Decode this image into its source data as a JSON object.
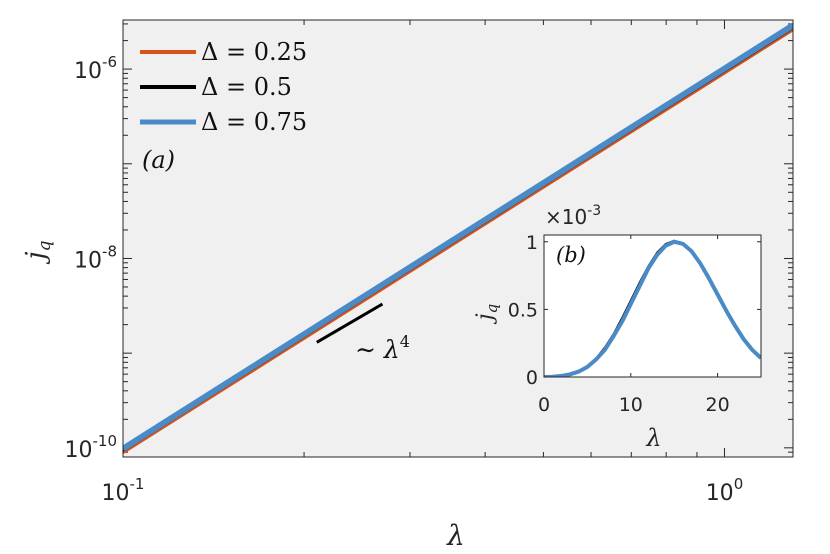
{
  "chart_data": [
    {
      "id": "main",
      "type": "line",
      "panel_label": "(a)",
      "xlabel": "λ",
      "ylabel": "j",
      "ylabel_sub": "q",
      "x_scale": "log",
      "y_scale": "log",
      "xlim": [
        0.1,
        1.3
      ],
      "ylim": [
        8e-11,
        3.3e-06
      ],
      "x_ticks": [
        {
          "value": 0.1,
          "base": "10",
          "exp": "-1"
        },
        {
          "value": 1,
          "base": "10",
          "exp": "0"
        }
      ],
      "y_ticks": [
        {
          "value": 1e-10,
          "base": "10",
          "exp": "-10"
        },
        {
          "value": 1e-08,
          "base": "10",
          "exp": "-8"
        },
        {
          "value": 1e-06,
          "base": "10",
          "exp": "-6"
        }
      ],
      "series": [
        {
          "name": "Δ = 0.25",
          "color": "#D95319",
          "x": [
            0.1,
            1.3
          ],
          "y": [
            8.9e-11,
            2.6e-06
          ]
        },
        {
          "name": "Δ = 0.5",
          "color": "#000000",
          "x": [
            0.1,
            1.3
          ],
          "y": [
            9.4e-11,
            2.75e-06
          ]
        },
        {
          "name": "Δ = 0.75",
          "color": "#4A8AC7",
          "x": [
            0.1,
            1.3
          ],
          "y": [
            9.8e-11,
            2.9e-06
          ]
        }
      ],
      "annotation": {
        "text": "∼ λ",
        "exp": "4",
        "x": [
          0.21,
          0.27
        ],
        "y": [
          1.3e-09,
          3.3e-09
        ]
      },
      "legend_placement": "top-left",
      "grid": false
    },
    {
      "id": "inset",
      "type": "line",
      "panel_label": "(b)",
      "xlabel": "λ",
      "ylabel": "j",
      "ylabel_sub": "q",
      "multiplier": "×10",
      "multiplier_exp": "-3",
      "xlim": [
        0,
        25
      ],
      "ylim": [
        0,
        1.05
      ],
      "x_ticks": [
        "0",
        "10",
        "20"
      ],
      "x_tick_values": [
        0,
        10,
        20
      ],
      "y_ticks": [
        "0",
        "0.5",
        "1"
      ],
      "y_tick_values": [
        0,
        0.5,
        1
      ],
      "series": [
        {
          "name": "Δ = 0.5",
          "color": "#000000",
          "x": [
            0,
            1,
            2,
            3,
            4,
            5,
            6,
            7,
            8,
            9,
            10,
            11,
            12,
            13,
            14,
            15,
            16,
            17,
            18,
            19,
            20,
            21,
            22,
            23,
            24,
            25
          ],
          "y": [
            0,
            0.002,
            0.008,
            0.02,
            0.04,
            0.08,
            0.14,
            0.22,
            0.32,
            0.44,
            0.57,
            0.7,
            0.82,
            0.92,
            0.985,
            1.01,
            0.99,
            0.93,
            0.84,
            0.73,
            0.61,
            0.49,
            0.38,
            0.28,
            0.2,
            0.14
          ]
        },
        {
          "name": "Δ = 0.75",
          "color": "#4A8AC7",
          "x": [
            0,
            1,
            2,
            3,
            4,
            5,
            6,
            7,
            8,
            9,
            10,
            11,
            12,
            13,
            14,
            15,
            16,
            17,
            18,
            19,
            20,
            21,
            22,
            23,
            24,
            25
          ],
          "y": [
            0,
            0.002,
            0.008,
            0.02,
            0.04,
            0.075,
            0.13,
            0.2,
            0.3,
            0.41,
            0.54,
            0.67,
            0.8,
            0.9,
            0.97,
            1.0,
            0.985,
            0.93,
            0.84,
            0.73,
            0.61,
            0.49,
            0.38,
            0.28,
            0.2,
            0.14
          ]
        }
      ],
      "grid": false
    }
  ]
}
